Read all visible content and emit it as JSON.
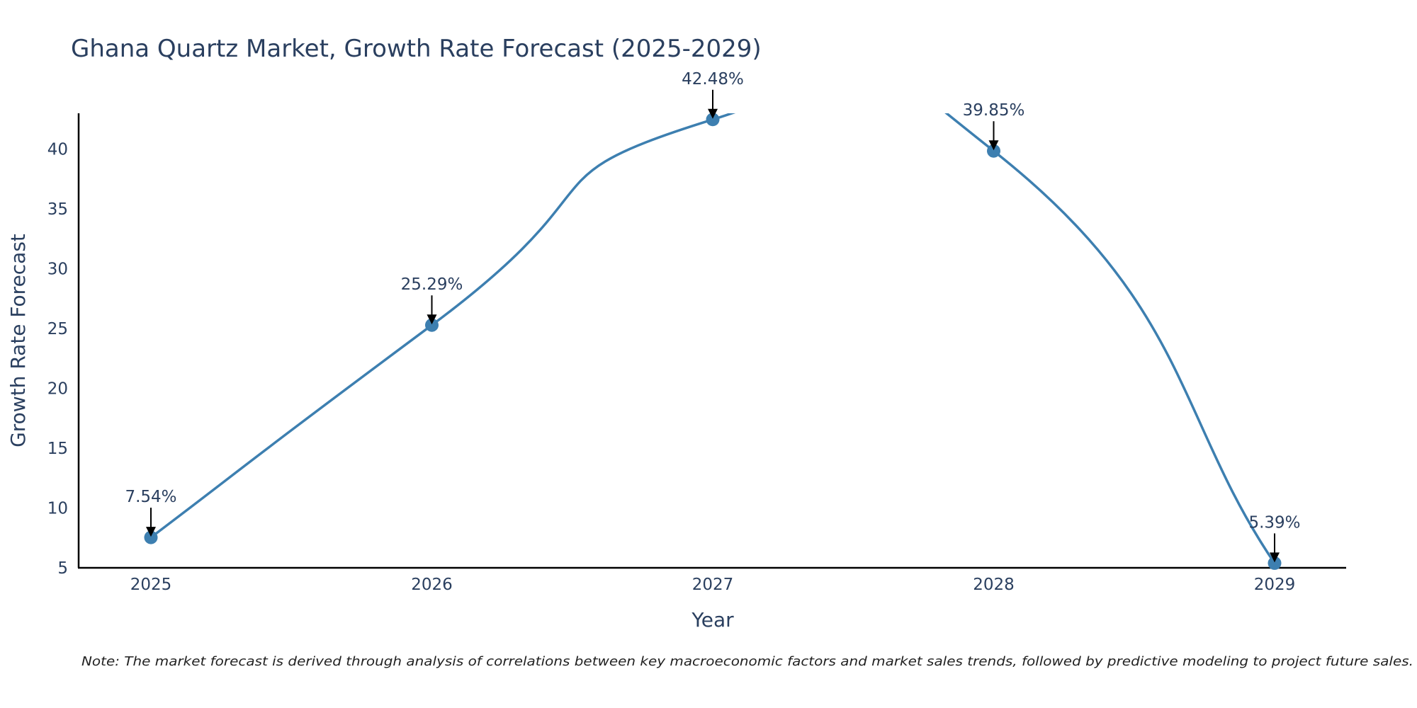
{
  "chart_data": {
    "type": "line",
    "title": "Ghana Quartz Market, Growth Rate Forecast (2025-2029)",
    "xlabel": "Year",
    "ylabel": "Growth Rate Forecast",
    "categories": [
      "2025",
      "2026",
      "2027",
      "2028",
      "2029"
    ],
    "series": [
      {
        "name": "Growth Rate Forecast",
        "values": [
          7.54,
          25.29,
          42.48,
          39.85,
          5.39
        ],
        "labels": [
          "7.54%",
          "25.29%",
          "42.48%",
          "39.85%",
          "5.39%"
        ]
      }
    ],
    "ylim": [
      5,
      43
    ],
    "yticks": [
      5,
      10,
      15,
      20,
      25,
      30,
      35,
      40
    ],
    "grid": false,
    "line_shape": "spline",
    "line_color": "#3d7fb0",
    "marker_color": "#3d7fb0",
    "note": "Note: The market forecast is derived through analysis of correlations between key macroeconomic factors and market sales trends, followed by predictive modeling to project future sales."
  }
}
